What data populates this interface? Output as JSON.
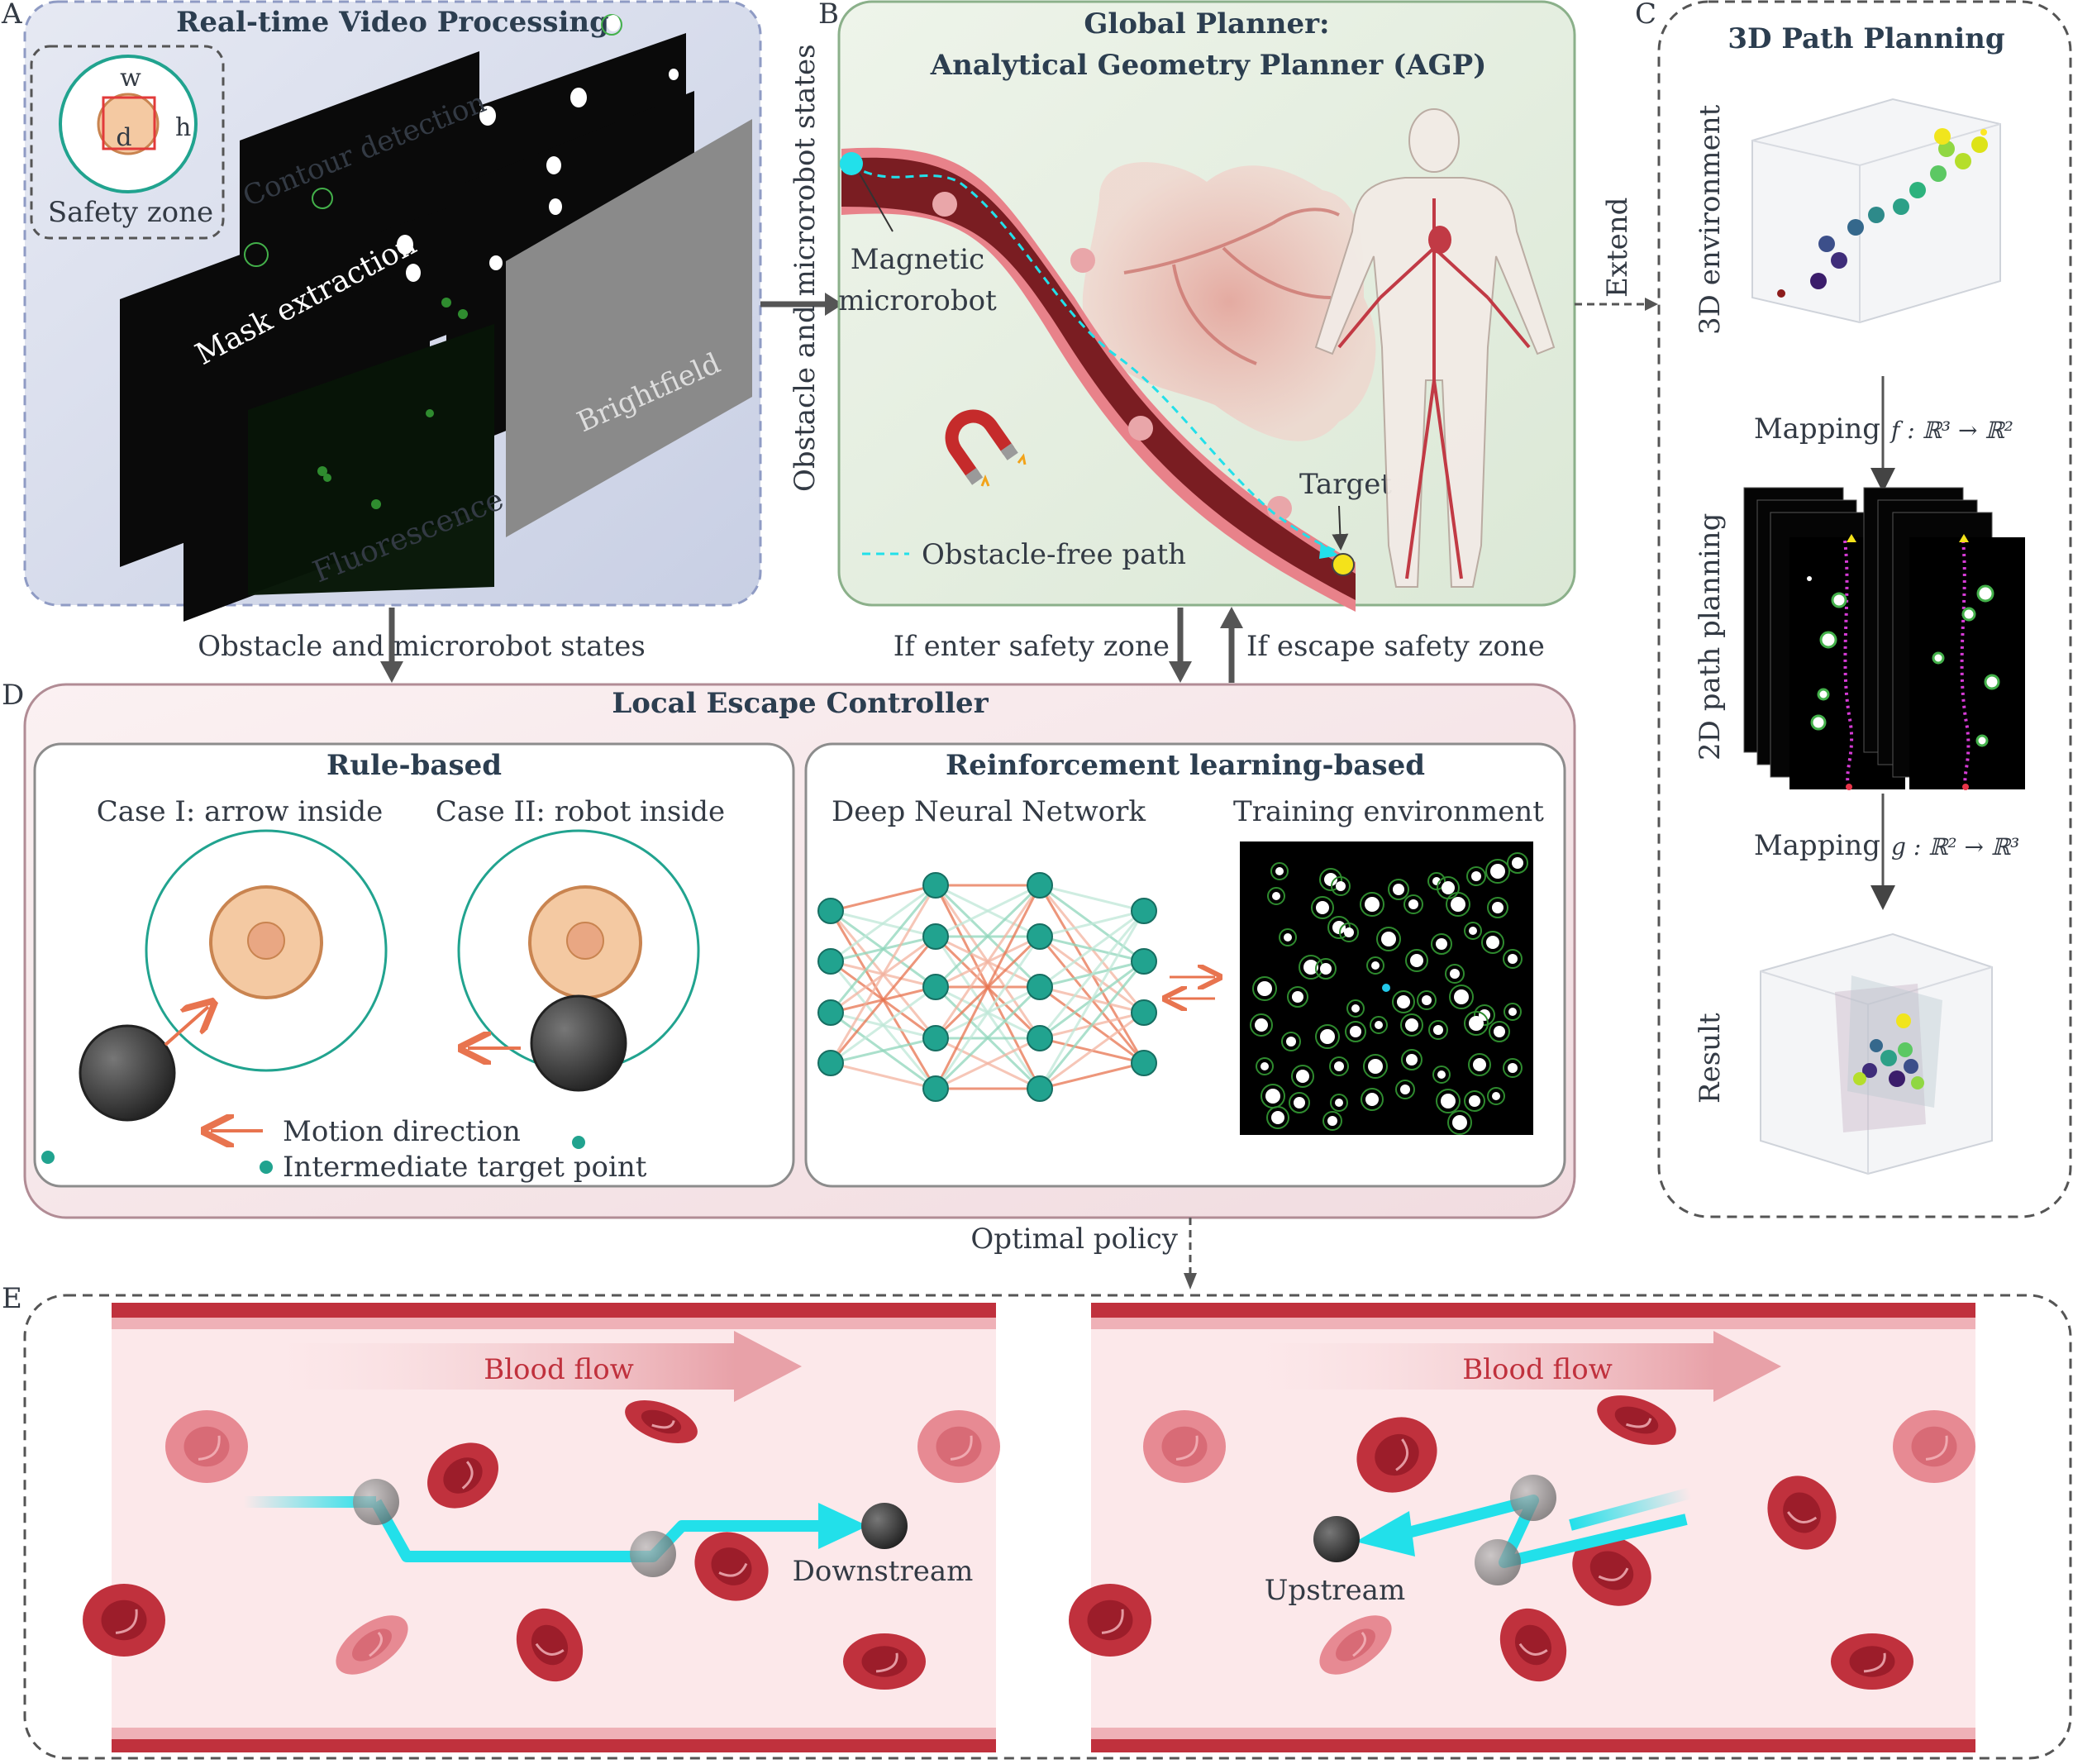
{
  "panels": {
    "A": {
      "letter": "A",
      "title": "Real-time Video Processing",
      "safety": {
        "w": "w",
        "h": "h",
        "d": "d",
        "label": "Safety zone"
      },
      "layers": [
        "Contour detection",
        "Mask extraction",
        "Brightfield",
        "Fluorescence"
      ]
    },
    "B": {
      "letter": "B",
      "title1": "Global Planner:",
      "title2": "Analytical Geometry Planner (AGP)",
      "side_label": "Obstacle and microrobot states",
      "robot_label1": "Magnetic",
      "robot_label2": "microrobot",
      "target": "Target",
      "legend": "Obstacle-free path"
    },
    "C": {
      "letter": "C",
      "title": "3D Path Planning",
      "extend": "Extend",
      "env_label": "3D environment",
      "map1_label": "Mapping",
      "map1_formula": "f : ℝ³ → ℝ²",
      "plan_label": "2D path planning",
      "map2_label": "Mapping",
      "map2_formula": "g : ℝ² → ℝ³",
      "result_label": "Result"
    },
    "D": {
      "letter": "D",
      "title": "Local Escape Controller",
      "states_label": "Obstacle and microrobot states",
      "enter": "If enter safety zone",
      "escape": "If escape safety zone",
      "rule": {
        "title": "Rule-based",
        "case1": "Case I: arrow inside",
        "case2": "Case II: robot inside",
        "motion": "Motion direction",
        "intermediate": "Intermediate target point"
      },
      "rl": {
        "title": "Reinforcement learning-based",
        "dnn": "Deep Neural Network",
        "env": "Training environment"
      },
      "policy": "Optimal policy"
    },
    "E": {
      "letter": "E",
      "flow_left": "Blood flow",
      "flow_right": "Blood flow",
      "downstream": "Downstream",
      "upstream": "Upstream"
    }
  },
  "colors": {
    "teal": "#21a38f",
    "orange": "#e8744f",
    "cyan": "#22e0ea",
    "vessel": "#7a1d22",
    "rbc": "#c0313d",
    "rbc_light": "#e78a93"
  }
}
